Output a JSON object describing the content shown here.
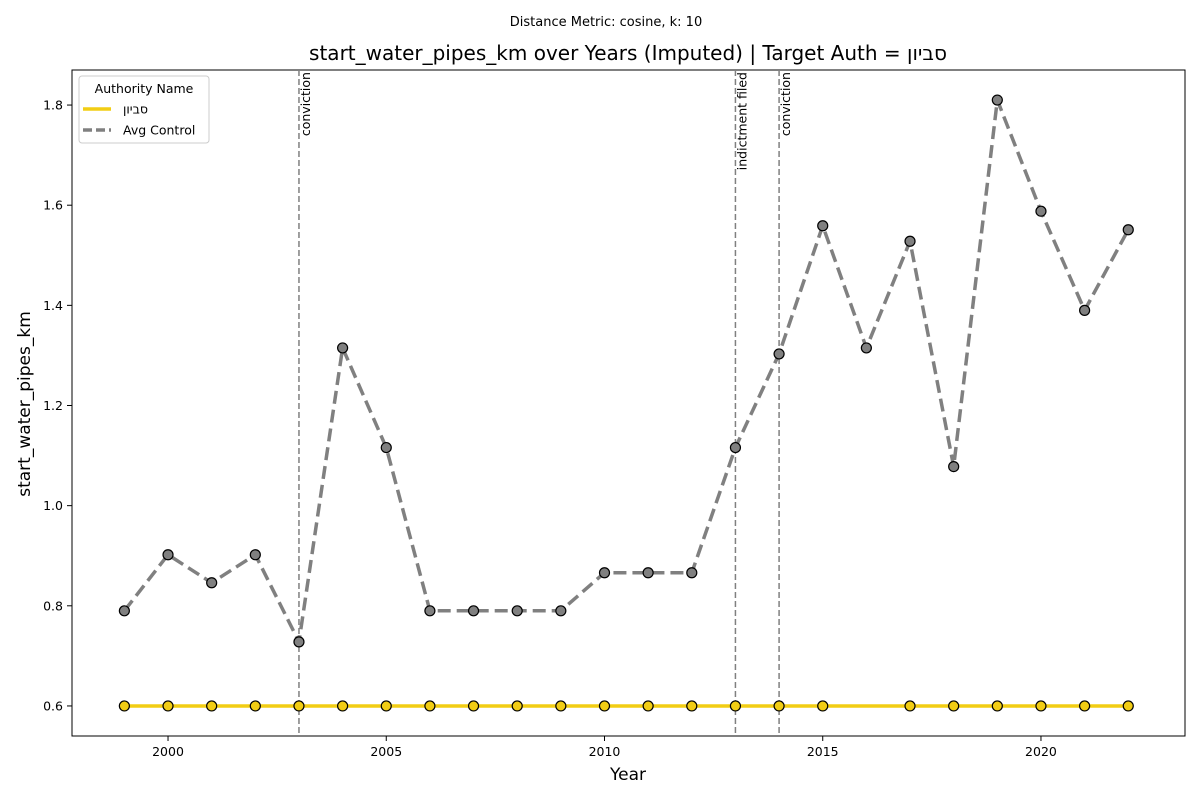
{
  "suptitle": "Distance Metric: cosine, k: 10",
  "chart_data": {
    "type": "line",
    "title": "start_water_pipes_km over Years (Imputed) | Target Auth = סביון",
    "xlabel": "Year",
    "ylabel": "start_water_pipes_km",
    "xlim": [
      1997.8,
      2023.3
    ],
    "ylim": [
      0.54,
      1.87
    ],
    "xticks": [
      2000,
      2005,
      2010,
      2015,
      2020
    ],
    "yticks": [
      0.6,
      0.8,
      1.0,
      1.2,
      1.4,
      1.6,
      1.8
    ],
    "grid": false,
    "legend": {
      "title": "Authority Name",
      "placement": "top-left"
    },
    "series": [
      {
        "name": "סביון",
        "color": "#f2cd14",
        "line_style": "solid",
        "marker_color": "#f2cd14",
        "x": [
          1999,
          2000,
          2001,
          2002,
          2003,
          2004,
          2005,
          2006,
          2007,
          2008,
          2009,
          2010,
          2011,
          2012,
          2013,
          2014,
          2015,
          2017,
          2018,
          2019,
          2020,
          2021,
          2022
        ],
        "y": [
          0.6,
          0.6,
          0.6,
          0.6,
          0.6,
          0.6,
          0.6,
          0.6,
          0.6,
          0.6,
          0.6,
          0.6,
          0.6,
          0.6,
          0.6,
          0.6,
          0.6,
          0.6,
          0.6,
          0.6,
          0.6,
          0.6,
          0.6
        ]
      },
      {
        "name": "Avg Control",
        "color": "#808080",
        "line_style": "dashed",
        "marker_color": "#808080",
        "x": [
          1999,
          2000,
          2001,
          2002,
          2003,
          2004,
          2005,
          2006,
          2007,
          2008,
          2009,
          2010,
          2011,
          2012,
          2013,
          2014,
          2015,
          2016,
          2017,
          2018,
          2019,
          2020,
          2021,
          2022
        ],
        "y": [
          0.79,
          0.902,
          0.846,
          0.902,
          0.728,
          1.315,
          1.116,
          0.79,
          0.79,
          0.79,
          0.79,
          0.866,
          0.866,
          0.866,
          1.116,
          1.303,
          1.559,
          1.315,
          1.528,
          1.078,
          1.81,
          1.588,
          1.39,
          1.551
        ]
      }
    ],
    "events": [
      {
        "x": 2003,
        "label": "conviction"
      },
      {
        "x": 2013,
        "label": "indictment filed"
      },
      {
        "x": 2014,
        "label": "conviction"
      }
    ]
  }
}
